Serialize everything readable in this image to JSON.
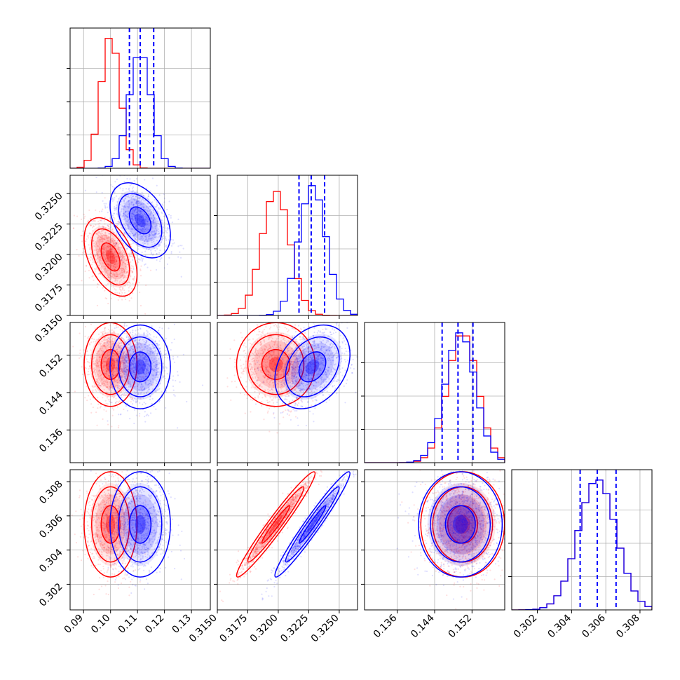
{
  "chart_data": {
    "type": "corner",
    "parameters": [
      "",
      "",
      "",
      ""
    ],
    "series_colors": [
      "#ff0000",
      "#0000ff"
    ],
    "grid": true,
    "ranges": [
      [
        0.085,
        0.137
      ],
      [
        0.315,
        0.3265
      ],
      [
        0.129,
        0.159
      ],
      [
        0.3005,
        0.3087
      ]
    ],
    "ticks": [
      {
        "values": [
          0.09,
          0.1,
          0.11,
          0.12,
          0.13
        ],
        "labels": [
          "0.09",
          "0.10",
          "0.11",
          "0.12",
          "0.13"
        ]
      },
      {
        "values": [
          0.315,
          0.3175,
          0.32,
          0.3225,
          0.325
        ],
        "labels": [
          "0.3150",
          "0.3175",
          "0.3200",
          "0.3225",
          "0.3250"
        ]
      },
      {
        "values": [
          0.136,
          0.144,
          0.152
        ],
        "labels": [
          "0.136",
          "0.144",
          "0.152"
        ]
      },
      {
        "values": [
          0.302,
          0.304,
          0.306,
          0.308
        ],
        "labels": [
          "0.302",
          "0.304",
          "0.306",
          "0.308"
        ]
      }
    ],
    "series": [
      {
        "color": "#ff0000",
        "mean": [
          0.1,
          0.3198,
          0.15,
          0.3055
        ],
        "sigma": [
          0.0035,
          0.00115,
          0.0032,
          0.0011
        ],
        "correlations": {
          "0-1": -0.45,
          "0-2": 0.0,
          "0-3": 0.0,
          "1-2": 0.0,
          "1-3": 0.97,
          "2-3": 0.0
        }
      },
      {
        "color": "#0000ff",
        "mean": [
          0.111,
          0.3228,
          0.1495,
          0.3055
        ],
        "sigma": [
          0.004,
          0.0011,
          0.0032,
          0.0011
        ],
        "correlations": {
          "0-1": -0.4,
          "0-2": 0.0,
          "0-3": 0.0,
          "1-2": 0.3,
          "1-3": 0.97,
          "2-3": 0.0
        }
      }
    ],
    "quantile_lines": {
      "color": "#0000ff",
      "style": "dashed",
      "values": [
        [
          0.107,
          0.111,
          0.116
        ],
        [
          0.3217,
          0.3227,
          0.3238
        ],
        [
          0.1456,
          0.149,
          0.1522
        ],
        [
          0.3045,
          0.3055,
          0.3066
        ]
      ]
    }
  }
}
